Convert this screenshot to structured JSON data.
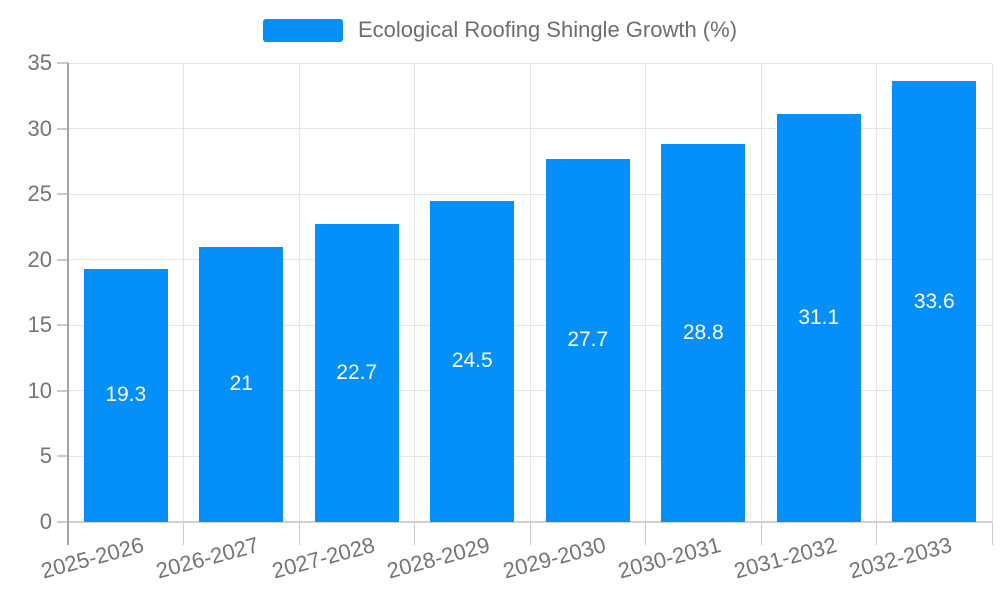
{
  "legend": {
    "label": "Ecological Roofing Shingle Growth (%)"
  },
  "chart_data": {
    "type": "bar",
    "title": "Ecological Roofing Shingle Growth (%)",
    "categories": [
      "2025-2026",
      "2026-2027",
      "2027-2028",
      "2028-2029",
      "2029-2030",
      "2030-2031",
      "2031-2032",
      "2032-2033"
    ],
    "values": [
      19.3,
      21,
      22.7,
      24.5,
      27.7,
      28.8,
      31.1,
      33.6
    ],
    "value_labels": [
      "19.3",
      "21",
      "22.7",
      "24.5",
      "27.7",
      "28.8",
      "31.1",
      "33.6"
    ],
    "xlabel": "",
    "ylabel": "",
    "ylim": [
      0,
      35
    ],
    "yticks": [
      0,
      5,
      10,
      15,
      20,
      25,
      30,
      35
    ],
    "grid": true,
    "legend_position": "top",
    "colors": {
      "bar": "#048ffb",
      "grid": "#e6e6e6",
      "y_axis": "#a3a3a3",
      "x_axis": "#d2d2d2",
      "tick_mark": "#cccccc",
      "tick_text": "#757575",
      "legend_text": "#6e6e6e",
      "value_text": "#ffffff"
    }
  }
}
